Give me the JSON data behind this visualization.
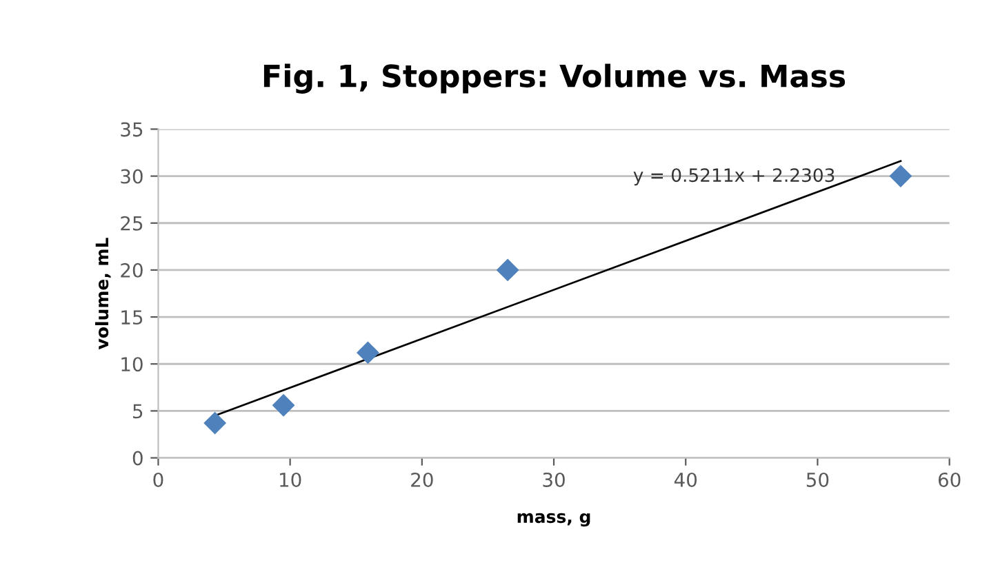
{
  "chart_data": {
    "type": "scatter",
    "title": "Fig. 1, Stoppers: Volume vs. Mass",
    "xlabel": "mass, g",
    "ylabel": "volume, mL",
    "series": [
      {
        "color": "#4f81bd",
        "marker": "diamond",
        "x": [
          4.3,
          9.5,
          15.9,
          26.5,
          56.3
        ],
        "values": [
          3.7,
          5.6,
          11.2,
          20.0,
          30.0
        ]
      },
      {
        "type": "line",
        "color": "#000000",
        "marker": "none",
        "x": [
          4.3,
          56.3
        ],
        "values": [
          4.5,
          31.6
        ]
      }
    ],
    "annotations": [
      "y = 0.5211x + 2.2303"
    ],
    "xlim": [
      0,
      60
    ],
    "xticks": [
      0,
      10,
      20,
      30,
      40,
      50,
      60
    ],
    "ylim": [
      0,
      35
    ],
    "yticks": [
      0,
      5,
      10,
      15,
      20,
      25,
      30,
      35
    ],
    "grid": "y",
    "legend": false
  }
}
